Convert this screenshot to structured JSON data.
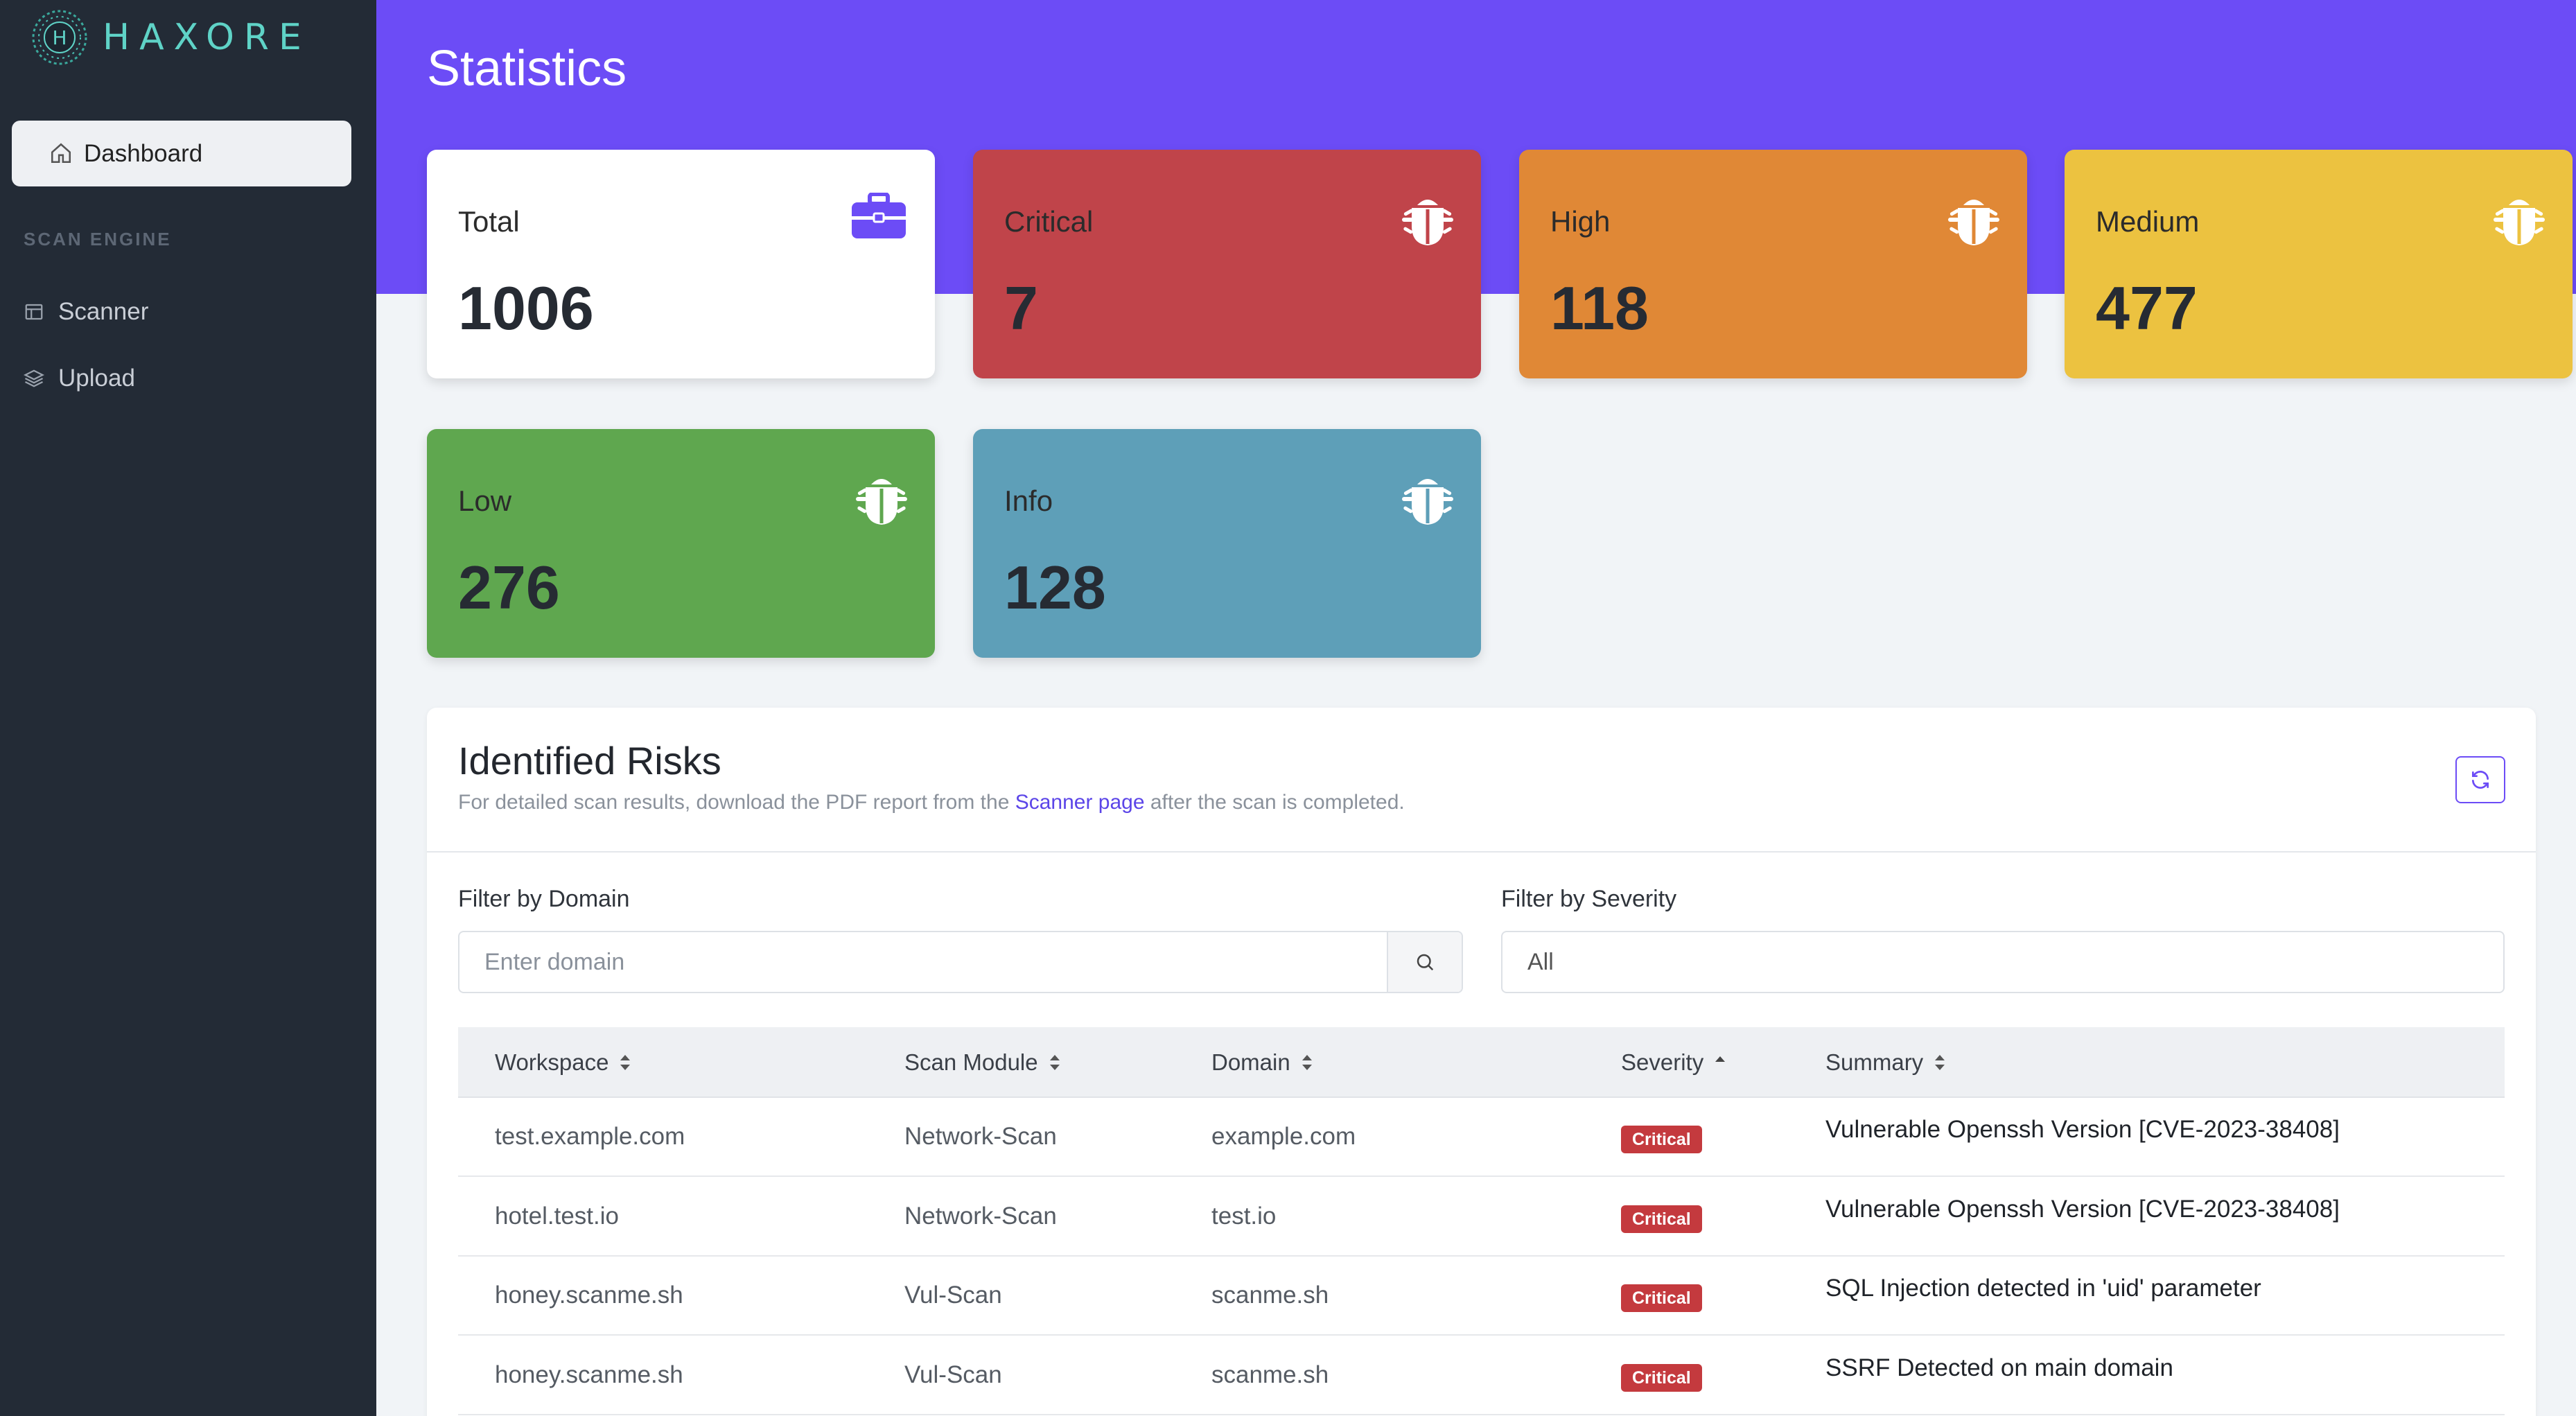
{
  "brand": {
    "name": "HAXORE",
    "mark": "H"
  },
  "sidebar": {
    "active_item": "Dashboard",
    "section_label": "SCAN ENGINE",
    "items": [
      {
        "label": "Scanner",
        "icon": "table-icon"
      },
      {
        "label": "Upload",
        "icon": "layers-icon"
      }
    ]
  },
  "header": {
    "title": "Statistics"
  },
  "stats": [
    {
      "label": "Total",
      "value": "1006",
      "color": "#ffffff",
      "icon": "briefcase-icon"
    },
    {
      "label": "Critical",
      "value": "7",
      "color": "#c0444a",
      "icon": "bug-icon"
    },
    {
      "label": "High",
      "value": "118",
      "color": "#e08836",
      "icon": "bug-icon"
    },
    {
      "label": "Medium",
      "value": "477",
      "color": "#ecc240",
      "icon": "bug-icon"
    },
    {
      "label": "Low",
      "value": "276",
      "color": "#5fa74f",
      "icon": "bug-icon"
    },
    {
      "label": "Info",
      "value": "128",
      "color": "#5e9fb8",
      "icon": "bug-icon"
    }
  ],
  "risks": {
    "title": "Identified Risks",
    "subtitle_pre": "For detailed scan results, download the PDF report from the ",
    "subtitle_link": "Scanner page",
    "subtitle_post": " after the scan is completed.",
    "filter_domain_label": "Filter by Domain",
    "filter_domain_placeholder": "Enter domain",
    "filter_severity_label": "Filter by Severity",
    "filter_severity_value": "All",
    "columns": [
      "Workspace",
      "Scan Module",
      "Domain",
      "Severity",
      "Summary"
    ],
    "rows": [
      {
        "workspace": "test.example.com",
        "module": "Network-Scan",
        "domain": "example.com",
        "severity": "Critical",
        "summary": "Vulnerable Openssh Version [CVE-2023-38408]"
      },
      {
        "workspace": "hotel.test.io",
        "module": "Network-Scan",
        "domain": "test.io",
        "severity": "Critical",
        "summary": "Vulnerable Openssh Version [CVE-2023-38408]"
      },
      {
        "workspace": "honey.scanme.sh",
        "module": "Vul-Scan",
        "domain": "scanme.sh",
        "severity": "Critical",
        "summary": "SQL Injection detected in 'uid' parameter"
      },
      {
        "workspace": "honey.scanme.sh",
        "module": "Vul-Scan",
        "domain": "scanme.sh",
        "severity": "Critical",
        "summary": "SSRF Detected on main domain"
      }
    ]
  },
  "colors": {
    "accent": "#6c4cf6",
    "sidebar": "#232b36",
    "critical_badge": "#c43a3e"
  }
}
